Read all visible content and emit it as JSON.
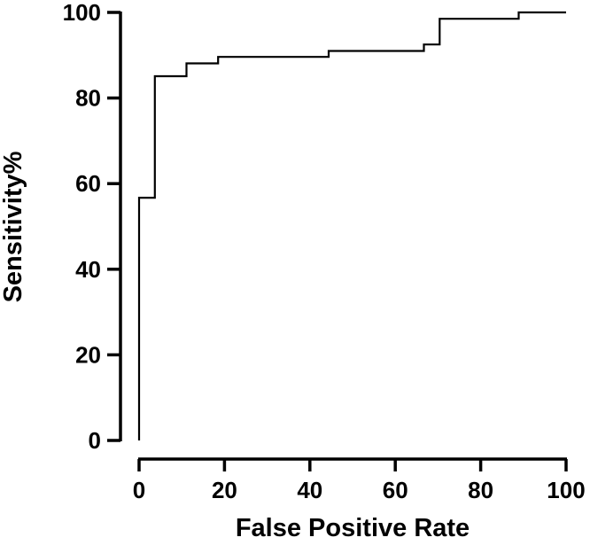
{
  "chart_data": {
    "type": "line",
    "title": "",
    "xlabel": "False Positive Rate",
    "ylabel": "Sensitivity%",
    "xlim": [
      0,
      100
    ],
    "ylim": [
      0,
      100
    ],
    "xticks": [
      0,
      20,
      40,
      60,
      80,
      100
    ],
    "yticks": [
      0,
      20,
      40,
      60,
      80,
      100
    ],
    "grid": false,
    "legend": "none",
    "line_color": "#000000",
    "series": [
      {
        "step": true,
        "points": [
          [
            0,
            0
          ],
          [
            0,
            56.7
          ],
          [
            3.7,
            56.7
          ],
          [
            3.7,
            85.1
          ],
          [
            11.1,
            85.1
          ],
          [
            11.1,
            88.1
          ],
          [
            18.5,
            88.1
          ],
          [
            18.5,
            89.6
          ],
          [
            44.4,
            89.6
          ],
          [
            44.4,
            91.0
          ],
          [
            66.7,
            91.0
          ],
          [
            66.7,
            92.5
          ],
          [
            70.4,
            92.5
          ],
          [
            70.4,
            98.5
          ],
          [
            88.9,
            98.5
          ],
          [
            88.9,
            100
          ],
          [
            100,
            100
          ]
        ]
      }
    ]
  }
}
